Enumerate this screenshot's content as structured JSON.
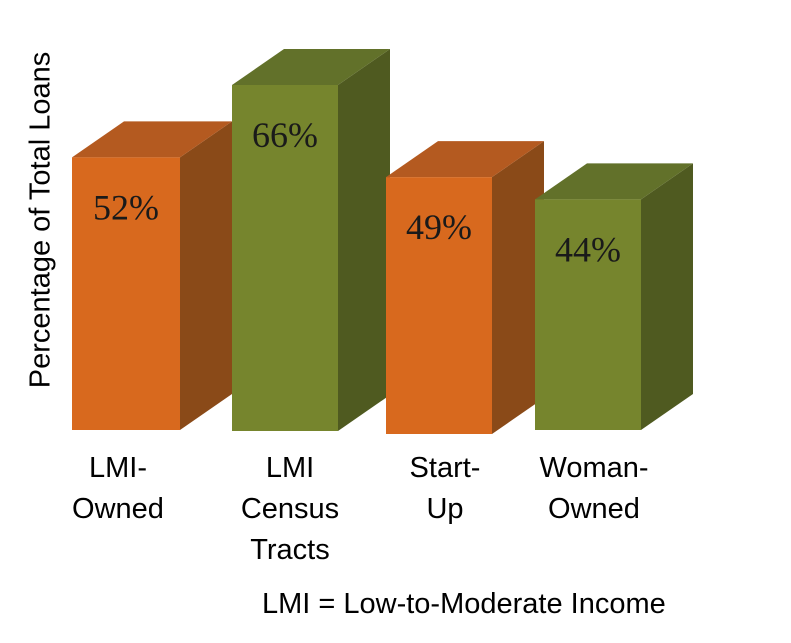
{
  "chart_data": {
    "type": "bar",
    "style": "3d-column",
    "categories": [
      "LMI-Owned",
      "LMI Census Tracts",
      "Start-Up",
      "Woman-Owned"
    ],
    "category_lines": [
      [
        "LMI-",
        "Owned"
      ],
      [
        "LMI",
        "Census",
        "Tracts"
      ],
      [
        "Start-",
        "Up"
      ],
      [
        "Woman-",
        "Owned"
      ]
    ],
    "values": [
      52,
      66,
      49,
      44
    ],
    "value_labels": [
      "52%",
      "66%",
      "49%",
      "44%"
    ],
    "title": "",
    "xlabel": "",
    "ylabel": "Percentage of Total Loans",
    "ylim": [
      0,
      70
    ],
    "grid": false,
    "legend": "none",
    "colors": {
      "orange_front": "#D8691E",
      "orange_side": "#8A4A18",
      "orange_top": "#B45A20",
      "green_front": "#76852D",
      "green_side": "#4F5A20",
      "green_top": "#62712A"
    },
    "bar_colors": [
      "orange",
      "green",
      "orange",
      "green"
    ]
  },
  "footnote": "LMI = Low-to-Moderate Income"
}
